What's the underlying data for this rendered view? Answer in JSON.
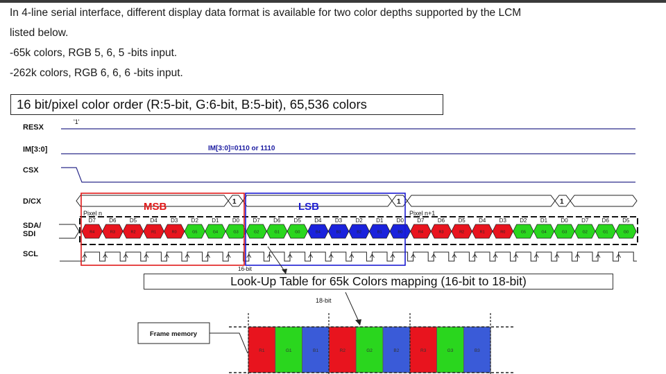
{
  "text": {
    "line1": "In 4-line serial interface, different display data format is available for two color depths supported by the LCM",
    "line2": "listed below.",
    "line3": "-65k colors, RGB 5, 6, 5 -bits input.",
    "line4": "-262k colors, RGB 6, 6, 6 -bits input."
  },
  "diagram": {
    "title": "16 bit/pixel color order (R:5-bit, G:6-bit, B:5-bit), 65,536 colors",
    "signals": {
      "resx": "RESX",
      "im": "IM[3:0]",
      "csx": "CSX",
      "dcx": "D/CX",
      "sda1": "SDA/",
      "sda2": "SDI",
      "scl": "SCL"
    },
    "resx_level": "'1'",
    "im_value": "IM[3:0]=0110 or 1110",
    "dcx_value": "1",
    "msb": "MSB",
    "lsb": "LSB",
    "pixel_n": "Pixel n",
    "pixel_n1": "Pixel n+1",
    "bits_a": [
      "D7",
      "D6",
      "D5",
      "D4",
      "D3",
      "D2",
      "D1",
      "D0",
      "D7",
      "D6",
      "D5",
      "D4",
      "D3",
      "D2",
      "D1",
      "D0"
    ],
    "bits_b": [
      "D7",
      "D6",
      "D5",
      "D4",
      "D3",
      "D2",
      "D1",
      "D0",
      "D7",
      "D6",
      "D5"
    ],
    "data_cells": [
      {
        "c": "#e8141e",
        "t": "R4"
      },
      {
        "c": "#e8141e",
        "t": "R3"
      },
      {
        "c": "#e8141e",
        "t": "R2"
      },
      {
        "c": "#e8141e",
        "t": "R1"
      },
      {
        "c": "#e8141e",
        "t": "R0"
      },
      {
        "c": "#2ad61e",
        "t": "G5"
      },
      {
        "c": "#2ad61e",
        "t": "G4"
      },
      {
        "c": "#2ad61e",
        "t": "G3"
      },
      {
        "c": "#2ad61e",
        "t": "G2"
      },
      {
        "c": "#2ad61e",
        "t": "G1"
      },
      {
        "c": "#2ad61e",
        "t": "G0"
      },
      {
        "c": "#1a22dc",
        "t": "B4"
      },
      {
        "c": "#1a22dc",
        "t": "B3"
      },
      {
        "c": "#1a22dc",
        "t": "B2"
      },
      {
        "c": "#1a22dc",
        "t": "B1"
      },
      {
        "c": "#1a22dc",
        "t": "B0"
      },
      {
        "c": "#e8141e",
        "t": "R4"
      },
      {
        "c": "#e8141e",
        "t": "R3"
      },
      {
        "c": "#e8141e",
        "t": "R2"
      },
      {
        "c": "#e8141e",
        "t": "R1"
      },
      {
        "c": "#e8141e",
        "t": "R0"
      },
      {
        "c": "#2ad61e",
        "t": "G5"
      },
      {
        "c": "#2ad61e",
        "t": "G4"
      },
      {
        "c": "#2ad61e",
        "t": "G3"
      },
      {
        "c": "#2ad61e",
        "t": "G2"
      },
      {
        "c": "#2ad61e",
        "t": "G1"
      },
      {
        "c": "#2ad61e",
        "t": "G0"
      }
    ],
    "label_16bit": "16-bit",
    "lut_title": "Look-Up Table for 65k Colors mapping (16-bit to 18-bit)",
    "label_18bit": "18-bit",
    "frame_memory": "Frame memory",
    "mem_cells": [
      {
        "c": "#e8141e",
        "t": "R1"
      },
      {
        "c": "#2ad61e",
        "t": "G1"
      },
      {
        "c": "#3a5bd8",
        "t": "B1"
      },
      {
        "c": "#e8141e",
        "t": "R2"
      },
      {
        "c": "#2ad61e",
        "t": "G2"
      },
      {
        "c": "#3a5bd8",
        "t": "B2"
      },
      {
        "c": "#e8141e",
        "t": "R3"
      },
      {
        "c": "#2ad61e",
        "t": "G3"
      },
      {
        "c": "#3a5bd8",
        "t": "B3"
      }
    ],
    "colors": {
      "msb": "#e01818",
      "lsb": "#1a1ad0",
      "line": "#2a2a8a"
    }
  }
}
